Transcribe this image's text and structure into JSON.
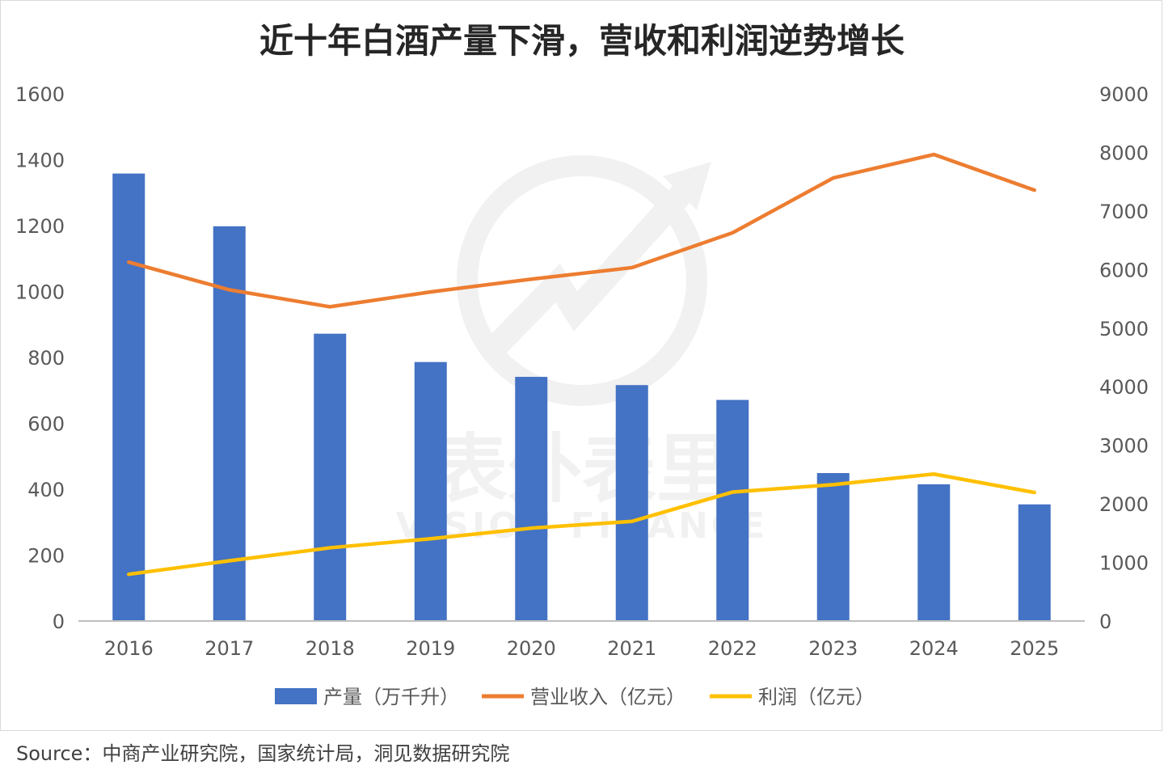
{
  "chart_data": {
    "type": "bar",
    "title": "近十年白酒产量下滑，营收和利润逆势增长",
    "categories": [
      "2016",
      "2017",
      "2018",
      "2019",
      "2020",
      "2021",
      "2022",
      "2023",
      "2024",
      "2025"
    ],
    "series": [
      {
        "name": "产量（万千升）",
        "type": "bar",
        "axis": "left",
        "color": "#4472C4",
        "values": [
          1358,
          1198,
          872,
          786,
          741,
          716,
          671,
          449,
          415,
          354
        ]
      },
      {
        "name": "营业收入（亿元）",
        "type": "line",
        "axis": "right",
        "color": "#ED7D31",
        "values": [
          6126,
          5654,
          5364,
          5618,
          5836,
          6033,
          6627,
          7563,
          7964,
          7355
        ]
      },
      {
        "name": "利润（亿元）",
        "type": "line",
        "axis": "right",
        "color": "#FFC000",
        "values": [
          798,
          1028,
          1250,
          1404,
          1585,
          1701,
          2201,
          2328,
          2509,
          2194
        ]
      }
    ],
    "y_left": {
      "min": 0,
      "max": 1600,
      "ticks": [
        "0",
        "200",
        "400",
        "600",
        "800",
        "1000",
        "1200",
        "1400",
        "1600"
      ]
    },
    "y_right": {
      "min": 0,
      "max": 9000,
      "ticks": [
        "0",
        "1000",
        "2000",
        "3000",
        "4000",
        "5000",
        "6000",
        "7000",
        "8000",
        "9000"
      ]
    },
    "grid": false,
    "legend_position": "bottom",
    "watermark": {
      "cn": "表外表里",
      "en": "VISION FINANCE"
    }
  },
  "source": "Source：中商产业研究院，国家统计局，洞见数据研究院"
}
